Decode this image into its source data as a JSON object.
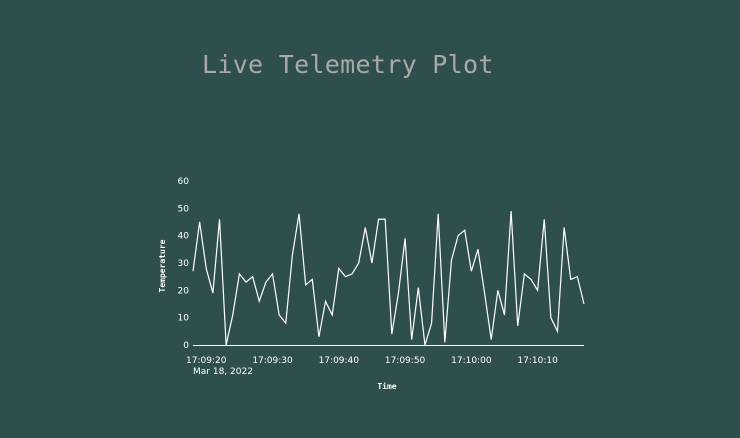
{
  "header": {
    "title": "Live Telemetry Plot"
  },
  "chart_data": {
    "type": "line",
    "title": "Live Telemetry Plot",
    "xlabel": "Time",
    "ylabel": "Temperature",
    "x_start": "17:09:18",
    "x_step_seconds": 1,
    "x_ticks": [
      "17:09:20",
      "17:09:30",
      "17:09:40",
      "17:09:50",
      "17:10:00",
      "17:10:10"
    ],
    "x_tick_seconds": [
      20,
      30,
      40,
      50,
      60,
      70
    ],
    "x_date_label": "Mar 18, 2022",
    "ylim": [
      0,
      60
    ],
    "y_ticks": [
      0,
      10,
      20,
      30,
      40,
      50,
      60
    ],
    "y_tick_labels": [
      "0",
      "10",
      "20",
      "30",
      "40",
      "50",
      "60"
    ],
    "grid": false,
    "line_color": "#ffffff",
    "values": [
      27,
      45,
      28,
      19,
      46,
      0,
      11,
      26,
      23,
      25,
      16,
      23,
      26,
      11,
      8,
      33,
      48,
      22,
      24,
      3,
      16,
      11,
      28,
      25,
      26,
      30,
      43,
      30,
      46,
      46,
      4,
      19,
      39,
      2,
      21,
      0,
      8,
      48,
      1,
      31,
      40,
      42,
      27,
      35,
      19,
      2,
      20,
      11,
      49,
      7,
      26,
      24,
      20,
      46,
      10,
      5,
      43,
      24,
      25,
      15
    ]
  }
}
